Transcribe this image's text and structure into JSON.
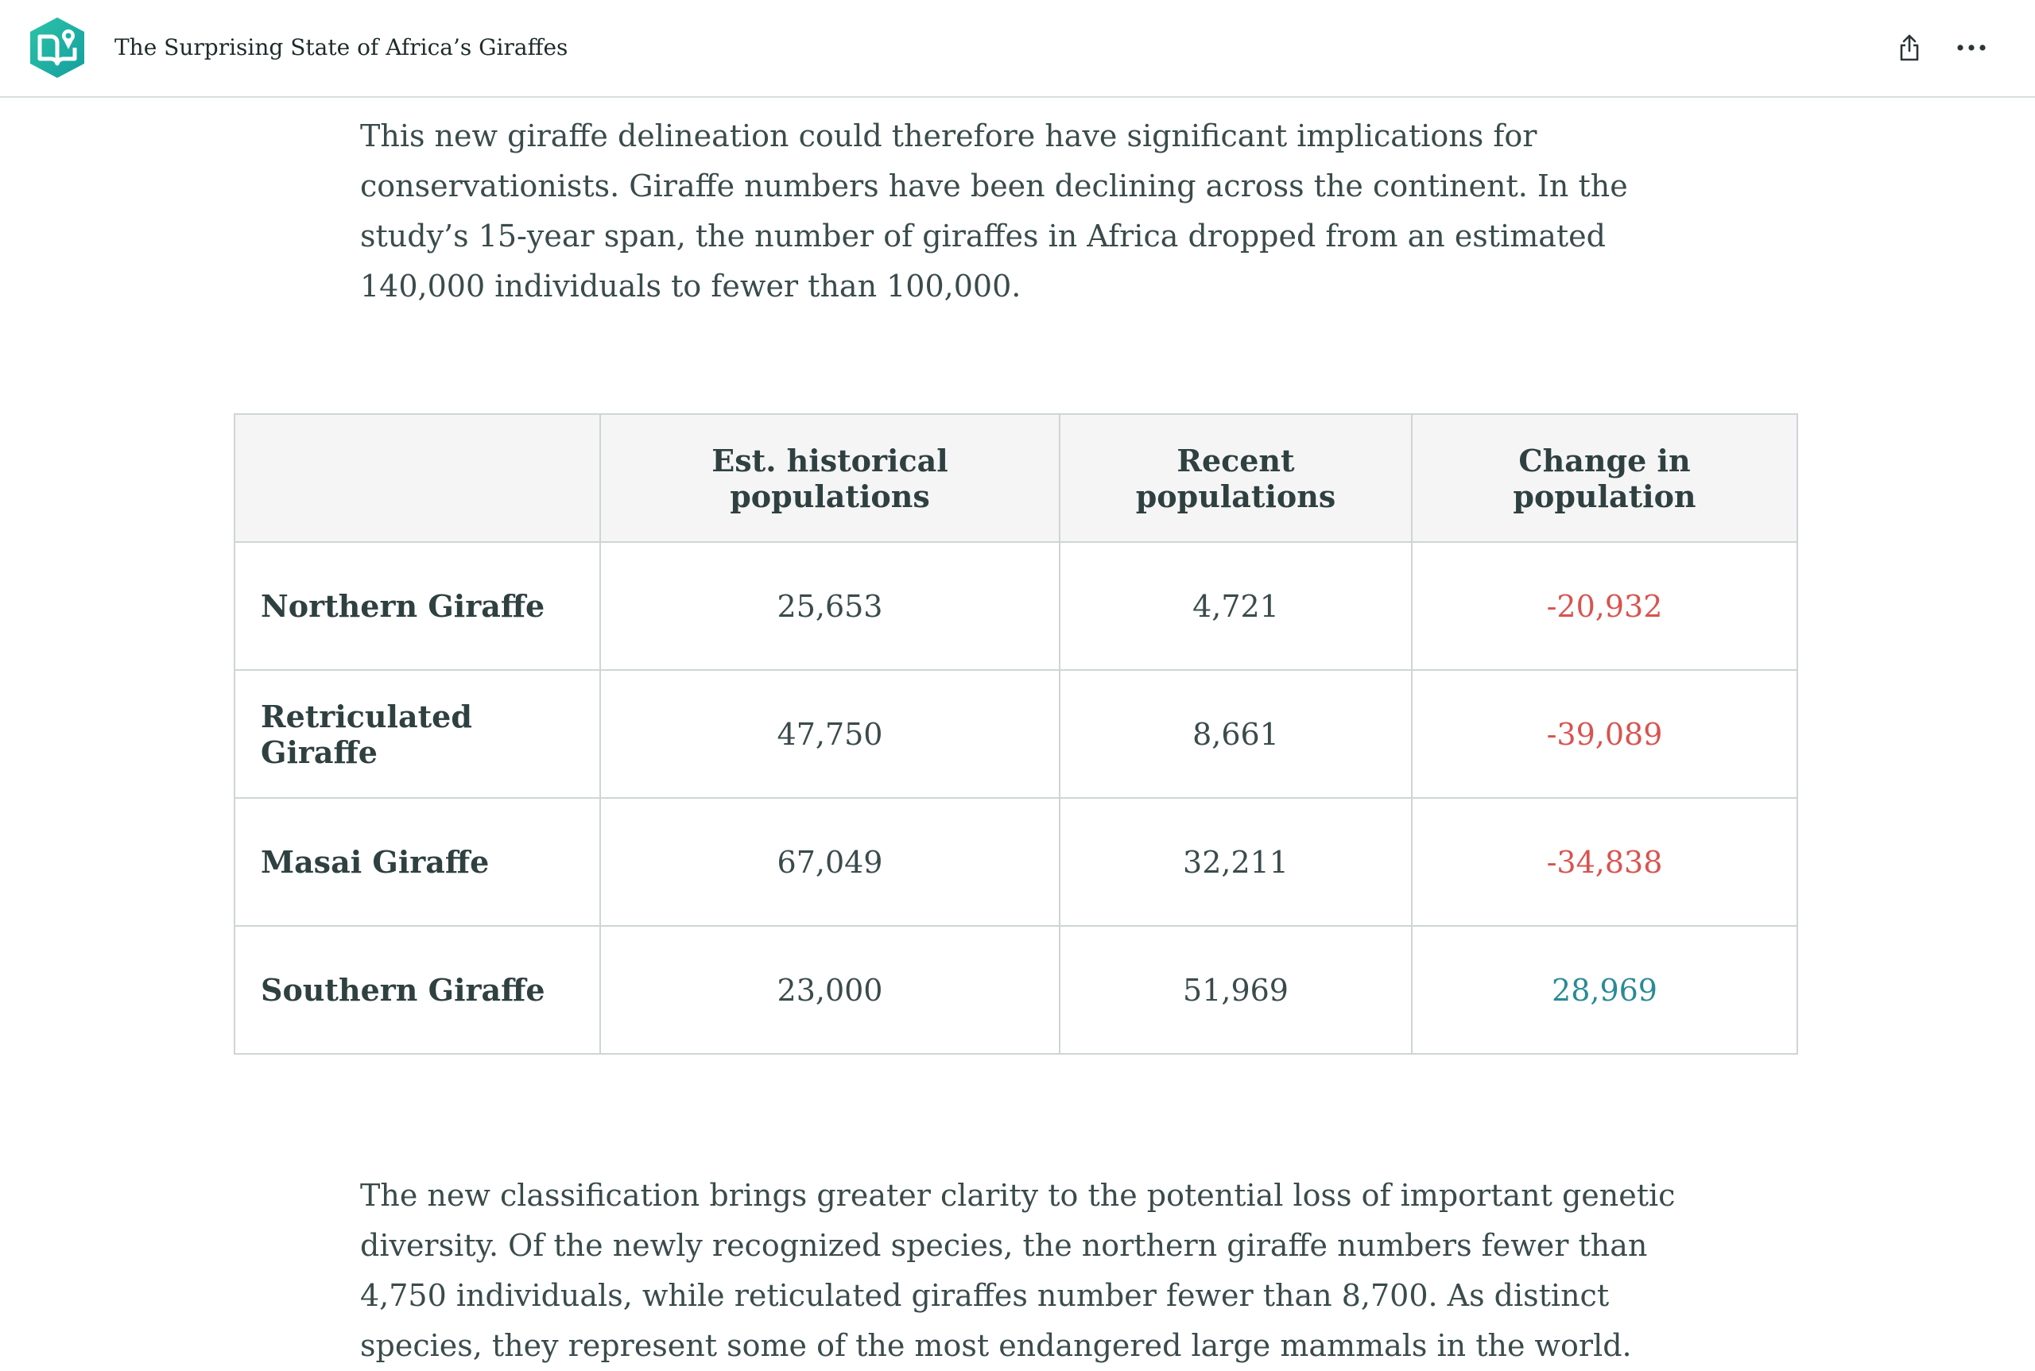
{
  "header": {
    "title": "The Surprising State of Africa’s Giraffes",
    "logo_icon": "book-map-pin-icon",
    "brand_color": "#1fb3a6",
    "share_icon": "share-icon",
    "more_icon": "more-horizontal-icon"
  },
  "article": {
    "paragraph_top": "This new giraffe delineation could therefore have significant implications for conservationists. Giraffe numbers have been declining across the continent. In the study’s 15-year span, the number of giraffes in Africa dropped from an estimated 140,000 individuals to fewer than 100,000.",
    "paragraph_bottom": "The new classification brings greater clarity to the potential loss of important genetic diversity. Of the newly recognized species, the northern giraffe numbers fewer than 4,750 individuals, while reticulated giraffes number fewer than 8,700. As distinct species, they represent some of the most endangered large mammals in the world."
  },
  "table": {
    "headers": [
      "",
      "Est. historical populations",
      "Recent populations",
      "Change in population"
    ],
    "rows": [
      {
        "species": "Northern Giraffe",
        "historical": "25,653",
        "recent": "4,721",
        "change": "-20,932"
      },
      {
        "species": "Retriculated Giraffe",
        "historical": "47,750",
        "recent": "8,661",
        "change": "-39,089"
      },
      {
        "species": "Masai Giraffe",
        "historical": "67,049",
        "recent": "32,211",
        "change": "-34,838"
      },
      {
        "species": "Southern Giraffe",
        "historical": "23,000",
        "recent": "51,969",
        "change": "28,969"
      }
    ],
    "negative_color": "#d9534f",
    "positive_color": "#2a8a96"
  }
}
